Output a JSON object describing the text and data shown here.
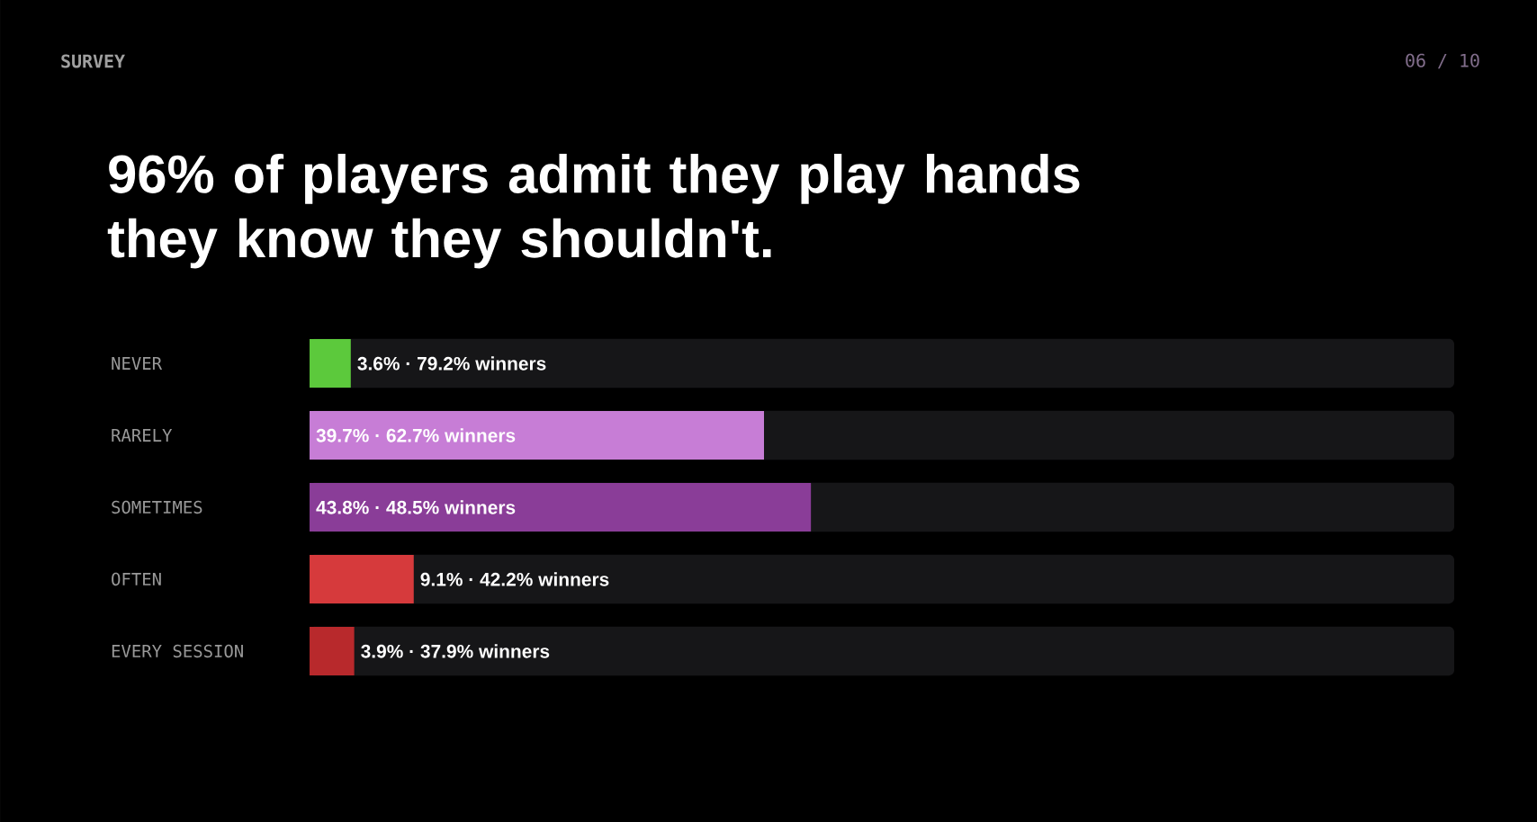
{
  "chart_data": {
    "type": "bar",
    "orientation": "horizontal",
    "title": "96% of players admit they play hands they know they shouldn't.",
    "annotations": [
      "SURVEY",
      "06 / 10"
    ],
    "categories": [
      "NEVER",
      "RARELY",
      "SOMETIMES",
      "OFTEN",
      "EVERY SESSION"
    ],
    "values": [
      3.6,
      39.7,
      43.8,
      9.1,
      3.9
    ],
    "colors": [
      "#5cc93c",
      "#c77dd6",
      "#8a3d98",
      "#d63a3c",
      "#b8292c"
    ],
    "value_labels": [
      "3.6% · 79.2% winners",
      "39.7% · 62.7% winners",
      "43.8% · 48.5% winners",
      "9.1% · 42.2% winners",
      "3.9% · 37.9% winners"
    ],
    "xlim": [
      0,
      100
    ],
    "tick_labels": "y"
  }
}
